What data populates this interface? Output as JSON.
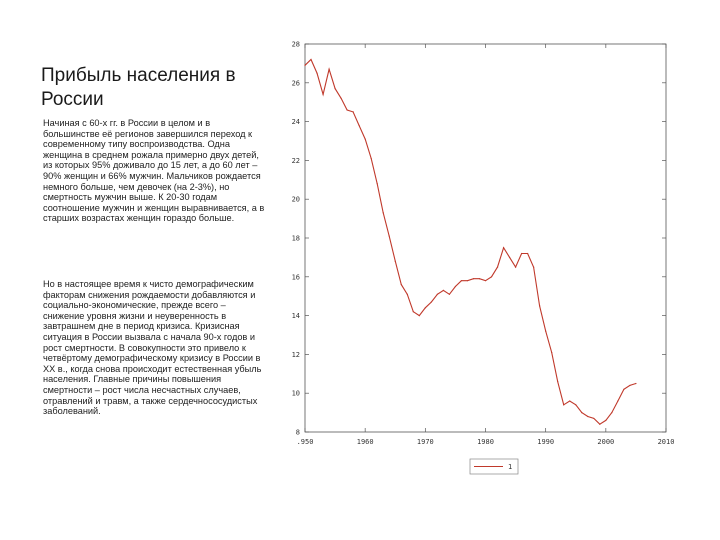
{
  "slide": {
    "title": "Прибыль населения в России",
    "paragraphs": [
      "Начиная с 60-х гг. в России в целом и в большинстве её регионов завершился переход к современному типу воспроизводства. Одна женщина в среднем рожала примерно двух детей, из которых 95% доживало до 15 лет, а до 60 лет – 90% женщин и 66% мужчин. Мальчиков рождается немного больше, чем девочек (на 2-3%), но смертность мужчин выше. К 20-30 годам соотношение мужчин и женщин выравнивается, а в старших возрастах женщин гораздо больше.",
      "Но в настоящее время к чисто демографическим факторам снижения рождаемости добавляются и социально-экономические, прежде всего – снижение уровня жизни и неуверенность в завтрашнем дне в период кризиса. Кризисная ситуация в России вызвала с начала 90-х годов и рост смертности. В совокупности это привело к четвёртому демографическому кризису в России в XX в., когда снова происходит естественная убыль населения. Главные причины повышения смертности – рост числа несчастных случаев, отравлений и травм, а также сердечнососудистых заболеваний."
    ]
  },
  "chart_data": {
    "type": "line",
    "xlim": [
      1950,
      2010
    ],
    "ylim": [
      8,
      28
    ],
    "x_ticks": [
      ".950",
      "1960",
      "1970",
      "1980",
      "1990",
      "2000",
      "2010"
    ],
    "y_ticks": [
      "28",
      "26",
      "24",
      "22",
      "20",
      "18",
      "16",
      "14",
      "12",
      "10",
      "8"
    ],
    "grid": false,
    "legend": {
      "position": "bottom-center",
      "entries": [
        "1"
      ]
    },
    "series": [
      {
        "name": "1",
        "color": "#c0392b",
        "x": [
          1950,
          1951,
          1952,
          1953,
          1954,
          1955,
          1956,
          1957,
          1958,
          1959,
          1960,
          1961,
          1962,
          1963,
          1964,
          1965,
          1966,
          1967,
          1968,
          1969,
          1970,
          1971,
          1972,
          1973,
          1974,
          1975,
          1976,
          1977,
          1978,
          1979,
          1980,
          1981,
          1982,
          1983,
          1984,
          1985,
          1986,
          1987,
          1988,
          1989,
          1990,
          1991,
          1992,
          1993,
          1994,
          1995,
          1996,
          1997,
          1998,
          1999,
          2000,
          2001,
          2002,
          2003,
          2004,
          2005
        ],
        "y": [
          26.9,
          27.2,
          26.5,
          25.4,
          26.7,
          25.7,
          25.2,
          24.6,
          24.5,
          23.8,
          23.1,
          22.1,
          20.8,
          19.3,
          18.1,
          16.8,
          15.6,
          15.1,
          14.2,
          14.0,
          14.4,
          14.7,
          15.1,
          15.3,
          15.1,
          15.5,
          15.8,
          15.8,
          15.9,
          15.9,
          15.8,
          16.0,
          16.5,
          17.5,
          17.0,
          16.5,
          17.2,
          17.2,
          16.5,
          14.5,
          13.2,
          12.1,
          10.6,
          9.4,
          9.6,
          9.4,
          9.0,
          8.8,
          8.7,
          8.4,
          8.6,
          9.0,
          9.6,
          10.2,
          10.4,
          10.5
        ]
      }
    ]
  }
}
